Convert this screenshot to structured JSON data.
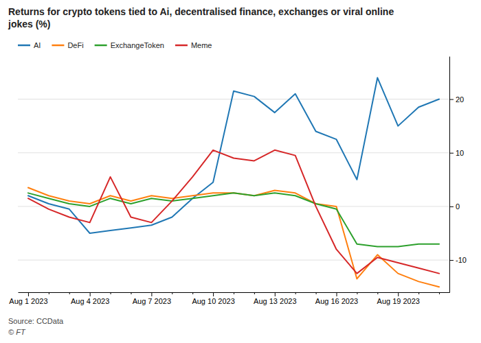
{
  "chart_data": {
    "type": "line",
    "title": "Returns for crypto tokens tied to Ai, decentralised finance, exchanges or viral online\njokes (%)",
    "annotations": [
      "Source: CCData",
      "© FT"
    ],
    "categories": [
      "Aug 1 2023",
      null,
      null,
      "Aug 4 2023",
      null,
      null,
      "Aug 7 2023",
      null,
      null,
      "Aug 10 2023",
      null,
      null,
      "Aug 13 2023",
      null,
      null,
      "Aug 16 2023",
      null,
      null,
      "Aug 19 2023",
      null,
      null
    ],
    "series": [
      {
        "name": "AI",
        "values": [
          2.0,
          0.5,
          -0.5,
          -5.0,
          -4.5,
          -4.0,
          -3.5,
          -2.0,
          1.5,
          4.5,
          21.5,
          20.5,
          17.5,
          21.0,
          14.0,
          12.5,
          5.0,
          24.0,
          15.0,
          18.5,
          20.0
        ]
      },
      {
        "name": "DeFi",
        "values": [
          3.5,
          2.0,
          1.0,
          0.5,
          2.0,
          1.0,
          2.0,
          1.5,
          2.0,
          2.5,
          2.5,
          2.0,
          3.0,
          2.5,
          0.5,
          0.0,
          -13.5,
          -9.0,
          -12.5,
          -14.0,
          -15.0
        ]
      },
      {
        "name": "ExchangeToken",
        "values": [
          2.5,
          1.5,
          0.5,
          0.0,
          1.5,
          0.5,
          1.5,
          1.0,
          1.5,
          2.0,
          2.5,
          2.0,
          2.5,
          2.0,
          0.5,
          -0.5,
          -7.0,
          -7.5,
          -7.5,
          -7.0,
          -7.0
        ]
      },
      {
        "name": "Meme",
        "values": [
          1.5,
          -0.5,
          -2.0,
          -3.0,
          5.5,
          -2.0,
          -3.0,
          1.0,
          5.5,
          10.5,
          9.0,
          8.5,
          10.5,
          9.5,
          0.0,
          -8.0,
          -12.5,
          -9.5,
          -10.5,
          -11.5,
          -12.5
        ]
      }
    ],
    "ylim": [
      -16,
      28
    ],
    "yticks": [
      -10,
      0,
      10,
      20
    ],
    "grid": true,
    "legend": "top-left"
  }
}
